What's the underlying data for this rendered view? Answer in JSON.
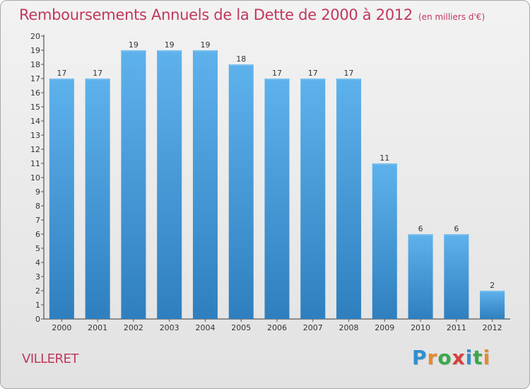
{
  "title": "Remboursements Annuels de la Dette de 2000 à 2012",
  "unit_note": "(en milliers d'€)",
  "place": "VILLERET",
  "brand": {
    "letters": [
      "P",
      "r",
      "o",
      "x",
      "i",
      "t",
      "i"
    ],
    "colors": [
      "#2f8fd0",
      "#e8892d",
      "#3aa84a",
      "#d6403a",
      "#2f8fd0",
      "#3aa84a",
      "#e8892d"
    ]
  },
  "colors": {
    "title": "#c0385c",
    "bar_top": "#5eb2ec",
    "bar_bottom": "#2f7fbf",
    "axis": "#333333",
    "grid_tick": "#555555"
  },
  "chart_data": {
    "type": "bar",
    "categories": [
      "2000",
      "2001",
      "2002",
      "2003",
      "2004",
      "2005",
      "2006",
      "2007",
      "2008",
      "2009",
      "2010",
      "2011",
      "2012"
    ],
    "values": [
      17,
      17,
      19,
      19,
      19,
      18,
      17,
      17,
      17,
      11,
      6,
      6,
      2
    ],
    "data_labels": [
      "17",
      "17",
      "19",
      "19",
      "19",
      "18",
      "17",
      "17",
      "17",
      "11",
      "6",
      "6",
      "2"
    ],
    "title": "Remboursements Annuels de la Dette de 2000 à 2012",
    "xlabel": "",
    "ylabel": "",
    "ylim": [
      0,
      20
    ],
    "yticks": [
      0,
      1,
      2,
      3,
      4,
      5,
      6,
      7,
      8,
      9,
      10,
      11,
      12,
      13,
      14,
      15,
      16,
      17,
      18,
      19,
      20
    ],
    "grid": false
  }
}
